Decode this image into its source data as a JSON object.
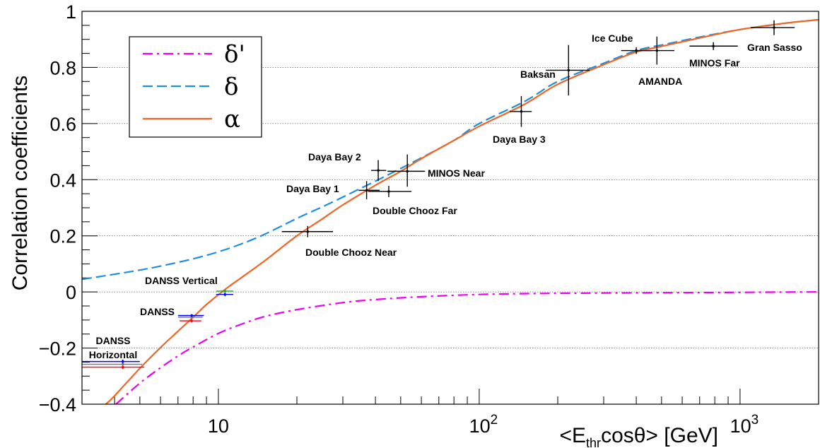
{
  "chart_data": {
    "type": "line",
    "xlabel": "<E_thr cosθ> [GeV]",
    "xlabel_parts": {
      "pre": "<E",
      "sub": "thr",
      "post": "cosθ> [GeV]"
    },
    "ylabel": "Correlation coefficients",
    "x_scale": "log",
    "xlim": [
      3.0,
      2000
    ],
    "ylim": [
      -0.4,
      1.0
    ],
    "grid": "horizontal dotted",
    "legend_position": "top-left",
    "y_ticks": [
      {
        "v": -0.4,
        "label": "−0.4"
      },
      {
        "v": -0.2,
        "label": "−0.2"
      },
      {
        "v": 0,
        "label": "0"
      },
      {
        "v": 0.2,
        "label": "0.2"
      },
      {
        "v": 0.4,
        "label": "0.4"
      },
      {
        "v": 0.6,
        "label": "0.6"
      },
      {
        "v": 0.8,
        "label": "0.8"
      },
      {
        "v": 1.0,
        "label": "1"
      }
    ],
    "x_ticks": [
      {
        "v": 10,
        "base": "10",
        "exp": ""
      },
      {
        "v": 100,
        "base": "10",
        "exp": "2"
      },
      {
        "v": 1000,
        "base": "10",
        "exp": "3"
      }
    ],
    "series": [
      {
        "name": "δ'",
        "color": "#ee00ee",
        "dash": "dashdot",
        "x": [
          4.05,
          5,
          6,
          7,
          8,
          10,
          12,
          15,
          20,
          30,
          40,
          60,
          100,
          150,
          200,
          300,
          500,
          800,
          1200,
          2000
        ],
        "y": [
          -0.4,
          -0.325,
          -0.27,
          -0.228,
          -0.196,
          -0.148,
          -0.118,
          -0.088,
          -0.063,
          -0.038,
          -0.027,
          -0.017,
          -0.009,
          -0.006,
          -0.005,
          -0.004,
          -0.003,
          -0.002,
          -0.001,
          0.0
        ]
      },
      {
        "name": "δ",
        "color": "#1e8fe0",
        "dash": "dashed",
        "x": [
          3,
          4,
          5,
          6,
          8,
          10,
          12,
          15,
          20,
          25,
          30,
          40,
          50,
          60,
          80,
          100,
          150,
          200,
          300,
          400,
          500,
          700,
          1000,
          1500,
          2000
        ],
        "y": [
          0.045,
          0.063,
          0.078,
          0.092,
          0.118,
          0.143,
          0.168,
          0.205,
          0.262,
          0.303,
          0.338,
          0.395,
          0.44,
          0.478,
          0.54,
          0.6,
          0.68,
          0.75,
          0.815,
          0.86,
          0.88,
          0.908,
          0.935,
          0.958,
          0.97
        ]
      },
      {
        "name": "α",
        "color": "#f26522",
        "dash": "solid",
        "x": [
          3.7,
          4,
          5,
          6,
          7,
          8,
          9,
          10,
          11,
          12,
          15,
          20,
          25,
          30,
          40,
          50,
          60,
          80,
          100,
          150,
          200,
          300,
          400,
          500,
          700,
          1000,
          1500,
          2000
        ],
        "y": [
          -0.4,
          -0.37,
          -0.272,
          -0.198,
          -0.14,
          -0.09,
          -0.045,
          -0.01,
          0.02,
          0.045,
          0.11,
          0.2,
          0.26,
          0.31,
          0.38,
          0.43,
          0.475,
          0.54,
          0.59,
          0.67,
          0.74,
          0.81,
          0.855,
          0.875,
          0.905,
          0.935,
          0.958,
          0.97
        ]
      }
    ],
    "measurements": [
      {
        "label": "DANSS\nHorizontal",
        "label_lines": [
          "DANSS",
          "Horizontal"
        ],
        "x": 4.3,
        "y": -0.268,
        "xlo": 3.0,
        "xhi": 5.2,
        "ylo": -0.275,
        "yhi": -0.261,
        "color": "#ff0000"
      },
      {
        "label": "",
        "x": 4.3,
        "y": -0.258,
        "xlo": 3.0,
        "xhi": 5.1,
        "ylo": -0.265,
        "yhi": -0.251,
        "color": "#777777"
      },
      {
        "label": "",
        "x": 4.3,
        "y": -0.248,
        "xlo": 3.0,
        "xhi": 5.0,
        "ylo": -0.255,
        "yhi": -0.241,
        "color": "#0000ff"
      },
      {
        "label": "DANSS",
        "label_lines": [
          "DANSS"
        ],
        "x": 7.9,
        "y": -0.103,
        "xlo": 7.1,
        "xhi": 8.6,
        "ylo": -0.109,
        "yhi": -0.097,
        "color": "#ff0000"
      },
      {
        "label": "",
        "x": 7.9,
        "y": -0.09,
        "xlo": 7.0,
        "xhi": 8.7,
        "ylo": -0.095,
        "yhi": -0.085,
        "color": "#777777"
      },
      {
        "label": "",
        "x": 7.9,
        "y": -0.084,
        "xlo": 7.0,
        "xhi": 8.8,
        "ylo": -0.089,
        "yhi": -0.079,
        "color": "#0000ff"
      },
      {
        "label": "DANSS Vertical",
        "label_lines": [
          "DANSS Vertical"
        ],
        "x": 10.6,
        "y": 0.003,
        "xlo": 9.8,
        "xhi": 11.4,
        "ylo": -0.003,
        "yhi": 0.009,
        "color": "#22aa22"
      },
      {
        "label": "",
        "x": 10.6,
        "y": -0.009,
        "xlo": 9.8,
        "xhi": 11.4,
        "ylo": -0.015,
        "yhi": -0.003,
        "color": "#0000ff"
      },
      {
        "label": "Double Chooz Near",
        "label_lines": [
          "Double Chooz Near"
        ],
        "x": 22.0,
        "y": 0.215,
        "xlo": 17.5,
        "xhi": 27.5,
        "ylo": 0.195,
        "yhi": 0.235,
        "color": "#000000"
      },
      {
        "label": "Daya Bay 1",
        "label_lines": [
          "Daya Bay 1"
        ],
        "x": 37.0,
        "y": 0.362,
        "xlo": 34.5,
        "xhi": 41.5,
        "ylo": 0.33,
        "yhi": 0.395,
        "color": "#000000"
      },
      {
        "label": "Double Chooz Far",
        "label_lines": [
          "Double Chooz Far"
        ],
        "x": 45.0,
        "y": 0.358,
        "xlo": 37.5,
        "xhi": 55.0,
        "ylo": 0.338,
        "yhi": 0.378,
        "color": "#000000"
      },
      {
        "label": "Daya Bay 2",
        "label_lines": [
          "Daya Bay 2"
        ],
        "x": 41.0,
        "y": 0.433,
        "xlo": 38.5,
        "xhi": 44.0,
        "ylo": 0.395,
        "yhi": 0.47,
        "color": "#000000"
      },
      {
        "label": "MINOS Near",
        "label_lines": [
          "MINOS Near"
        ],
        "x": 53.0,
        "y": 0.43,
        "xlo": 44.5,
        "xhi": 62.0,
        "ylo": 0.375,
        "yhi": 0.49,
        "color": "#000000"
      },
      {
        "label": "Daya Bay 3",
        "label_lines": [
          "Daya Bay 3"
        ],
        "x": 145.0,
        "y": 0.643,
        "xlo": 131.0,
        "xhi": 159.0,
        "ylo": 0.588,
        "yhi": 0.698,
        "color": "#000000"
      },
      {
        "label": "Baksan",
        "label_lines": [
          "Baksan"
        ],
        "x": 220.0,
        "y": 0.79,
        "xlo": 180.0,
        "xhi": 265.0,
        "ylo": 0.7,
        "yhi": 0.88,
        "color": "#000000"
      },
      {
        "label": "Ice Cube",
        "label_lines": [
          "Ice Cube"
        ],
        "x": 400.0,
        "y": 0.86,
        "xlo": 350.0,
        "xhi": 460.0,
        "ylo": 0.848,
        "yhi": 0.872,
        "color": "#000000"
      },
      {
        "label": "AMANDA",
        "label_lines": [
          "AMANDA"
        ],
        "x": 480.0,
        "y": 0.86,
        "xlo": 400.0,
        "xhi": 560.0,
        "ylo": 0.81,
        "yhi": 0.91,
        "color": "#000000"
      },
      {
        "label": "MINOS Far",
        "label_lines": [
          "MINOS Far"
        ],
        "x": 790.0,
        "y": 0.876,
        "xlo": 640.0,
        "xhi": 980.0,
        "ylo": 0.862,
        "yhi": 0.89,
        "color": "#000000"
      },
      {
        "label": "Gran Sasso",
        "label_lines": [
          "Gran Sasso"
        ],
        "x": 1350.0,
        "y": 0.942,
        "xlo": 1100.0,
        "xhi": 1620.0,
        "ylo": 0.915,
        "yhi": 0.968,
        "color": "#000000"
      }
    ],
    "legend": [
      "δ'",
      "δ",
      "α"
    ]
  }
}
